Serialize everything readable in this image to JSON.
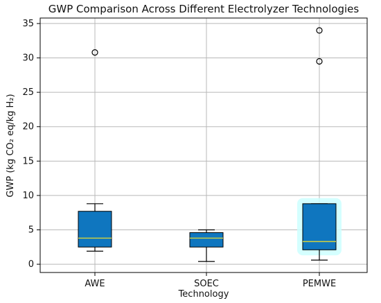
{
  "chart_data": {
    "type": "box",
    "title": "GWP Comparison Across Different Electrolyzer Technologies",
    "xlabel": "Technology",
    "ylabel": "GWP (kg CO₂ eq/kg H₂)",
    "categories": [
      "AWE",
      "SOEC",
      "PEMWE"
    ],
    "ylim": [
      -1.2,
      35.8
    ],
    "yticks": [
      0,
      5,
      10,
      15,
      20,
      25,
      30,
      35
    ],
    "grid": true,
    "boxes": [
      {
        "category": "AWE",
        "whisker_low": 1.9,
        "q1": 2.5,
        "median": 3.8,
        "q3": 7.7,
        "whisker_high": 8.8,
        "outliers": [
          30.8
        ],
        "fill": "#0f76bf"
      },
      {
        "category": "SOEC",
        "whisker_low": 0.4,
        "q1": 2.5,
        "median": 3.8,
        "q3": 4.6,
        "whisker_high": 5.0,
        "outliers": [],
        "fill": "#0f76bf"
      },
      {
        "category": "PEMWE",
        "whisker_low": 0.6,
        "q1": 2.1,
        "median": 3.3,
        "q3": 8.8,
        "whisker_high": 8.8,
        "outliers": [
          34.0,
          29.5
        ],
        "fill": "#0f76bf",
        "glow": "#ccffff"
      }
    ],
    "colors": {
      "box_edge": "#000000",
      "median": "#d7d33a",
      "grid": "#b8b8b8",
      "axis": "#000000"
    }
  }
}
